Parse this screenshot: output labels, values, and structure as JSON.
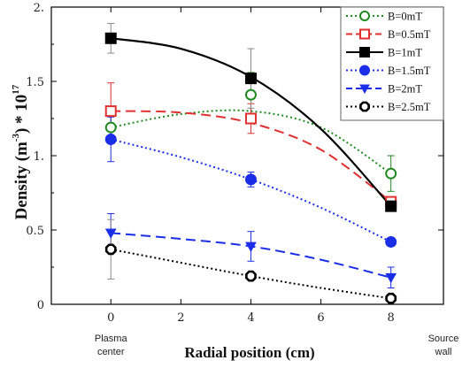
{
  "chart_data": {
    "type": "scatter",
    "xlabel": "Radial position (cm)",
    "ylabel_main": "Density (m",
    "ylabel_exp": "-3",
    "ylabel_tail": ") * 10",
    "ylabel_pow": "17",
    "x_ticks": [
      "0",
      "2",
      "4",
      "6",
      "8"
    ],
    "y_ticks": [
      "0",
      "0.5",
      "1.",
      "1.5",
      "2."
    ],
    "xlim": [
      -1.7,
      9.5
    ],
    "ylim": [
      0,
      2.0
    ],
    "x_notes": [
      {
        "lines": [
          "Plasma",
          "center"
        ],
        "x": 0
      },
      {
        "lines": [
          "Source",
          "wall"
        ],
        "x": 9.5
      }
    ],
    "legend_placement": "top-right",
    "x": [
      0,
      4,
      8
    ],
    "series": [
      {
        "name": "B=0mT",
        "values": [
          1.19,
          1.41,
          0.88
        ],
        "errors": [
          0.1,
          0.15,
          0.12
        ],
        "color": "#1f8a1f",
        "marker": "circle-open",
        "line": "dotted",
        "trend": [
          1.19,
          1.28,
          1.3,
          1.19,
          0.88
        ]
      },
      {
        "name": "B=0.5mT",
        "values": [
          1.3,
          1.25,
          0.69
        ],
        "errors": [
          0.19,
          0.1,
          0.0
        ],
        "color": "#e03030",
        "marker": "square-open",
        "line": "dashed",
        "trend": [
          1.3,
          1.29,
          1.22,
          1.04,
          0.69
        ]
      },
      {
        "name": "B=1mT",
        "values": [
          1.79,
          1.52,
          0.66
        ],
        "errors": [
          0.1,
          0.2,
          0.0
        ],
        "color": "#000000",
        "marker": "square-filled",
        "line": "solid",
        "trend": [
          1.79,
          1.72,
          1.53,
          1.18,
          0.66
        ]
      },
      {
        "name": "B=1.5mT",
        "values": [
          1.11,
          0.84,
          0.42
        ],
        "errors": [
          0.15,
          0.05,
          0.0
        ],
        "color": "#1a2ee8",
        "marker": "circle-filled",
        "line": "dotted",
        "trend": [
          1.11,
          0.99,
          0.84,
          0.65,
          0.42
        ]
      },
      {
        "name": "B=2mT",
        "values": [
          0.48,
          0.39,
          0.18
        ],
        "errors": [
          0.13,
          0.1,
          0.07
        ],
        "color": "#1a2ee8",
        "marker": "triangle-down",
        "line": "dashed",
        "trend": [
          0.48,
          0.44,
          0.39,
          0.3,
          0.18
        ]
      },
      {
        "name": "B=2.5mT",
        "values": [
          0.37,
          0.19,
          0.04
        ],
        "errors": [
          0.2,
          0.0,
          0.0
        ],
        "color": "#000000",
        "marker": "octagon-open",
        "line": "dotted",
        "trend": [
          0.37,
          0.28,
          0.19,
          0.11,
          0.04
        ]
      }
    ]
  }
}
